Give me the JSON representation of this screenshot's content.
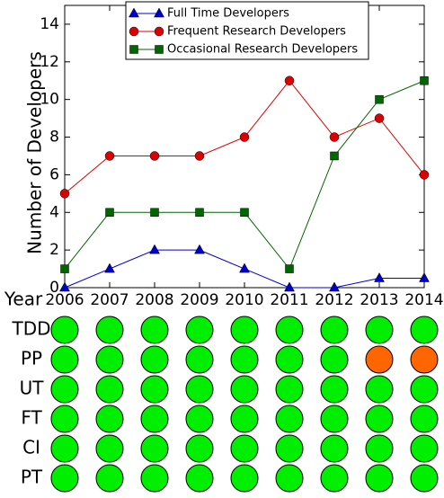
{
  "chart_data": {
    "type": "line",
    "y_label": "Number of Developers",
    "x": [
      2006,
      2007,
      2008,
      2009,
      2010,
      2011,
      2012,
      2013,
      2014
    ],
    "xlim": [
      2006,
      2014
    ],
    "xticks": [
      2006,
      2007,
      2008,
      2009,
      2010,
      2011,
      2012,
      2013,
      2014
    ],
    "ylim": [
      0,
      15
    ],
    "yticks": [
      0,
      2,
      4,
      6,
      8,
      10,
      12,
      14
    ],
    "legend": "upper center",
    "series": [
      {
        "name": "Full Time Developers",
        "color": "#0000cc",
        "marker": "triangle",
        "values": [
          0,
          1,
          2,
          2,
          1,
          0,
          0,
          0.5,
          0.5
        ]
      },
      {
        "name": "Frequent Research Developers",
        "color": "#dd0000",
        "marker": "circle",
        "values": [
          5,
          7,
          7,
          7,
          8,
          11,
          8,
          9,
          6
        ]
      },
      {
        "name": "Occasional Research Developers",
        "color": "#006600",
        "marker": "square",
        "values": [
          1,
          4,
          4,
          4,
          4,
          1,
          7,
          10,
          11
        ]
      }
    ]
  },
  "matrix": {
    "label": "Year",
    "rows": [
      {
        "name": "TDD",
        "colors": [
          "#00ee00",
          "#00ee00",
          "#00ee00",
          "#00ee00",
          "#00ee00",
          "#00ee00",
          "#00ee00",
          "#00ee00",
          "#00ee00"
        ]
      },
      {
        "name": "PP",
        "colors": [
          "#00ee00",
          "#00ee00",
          "#00ee00",
          "#00ee00",
          "#00ee00",
          "#00ee00",
          "#00ee00",
          "#ff6600",
          "#ff6600"
        ]
      },
      {
        "name": "UT",
        "colors": [
          "#00ee00",
          "#00ee00",
          "#00ee00",
          "#00ee00",
          "#00ee00",
          "#00ee00",
          "#00ee00",
          "#00ee00",
          "#00ee00"
        ]
      },
      {
        "name": "FT",
        "colors": [
          "#00ee00",
          "#00ee00",
          "#00ee00",
          "#00ee00",
          "#00ee00",
          "#00ee00",
          "#00ee00",
          "#00ee00",
          "#00ee00"
        ]
      },
      {
        "name": "CI",
        "colors": [
          "#00ee00",
          "#00ee00",
          "#00ee00",
          "#00ee00",
          "#00ee00",
          "#00ee00",
          "#00ee00",
          "#00ee00",
          "#00ee00"
        ]
      },
      {
        "name": "PT",
        "colors": [
          "#00ee00",
          "#00ee00",
          "#00ee00",
          "#00ee00",
          "#00ee00",
          "#00ee00",
          "#00ee00",
          "#00ee00",
          "#00ee00"
        ]
      }
    ]
  }
}
